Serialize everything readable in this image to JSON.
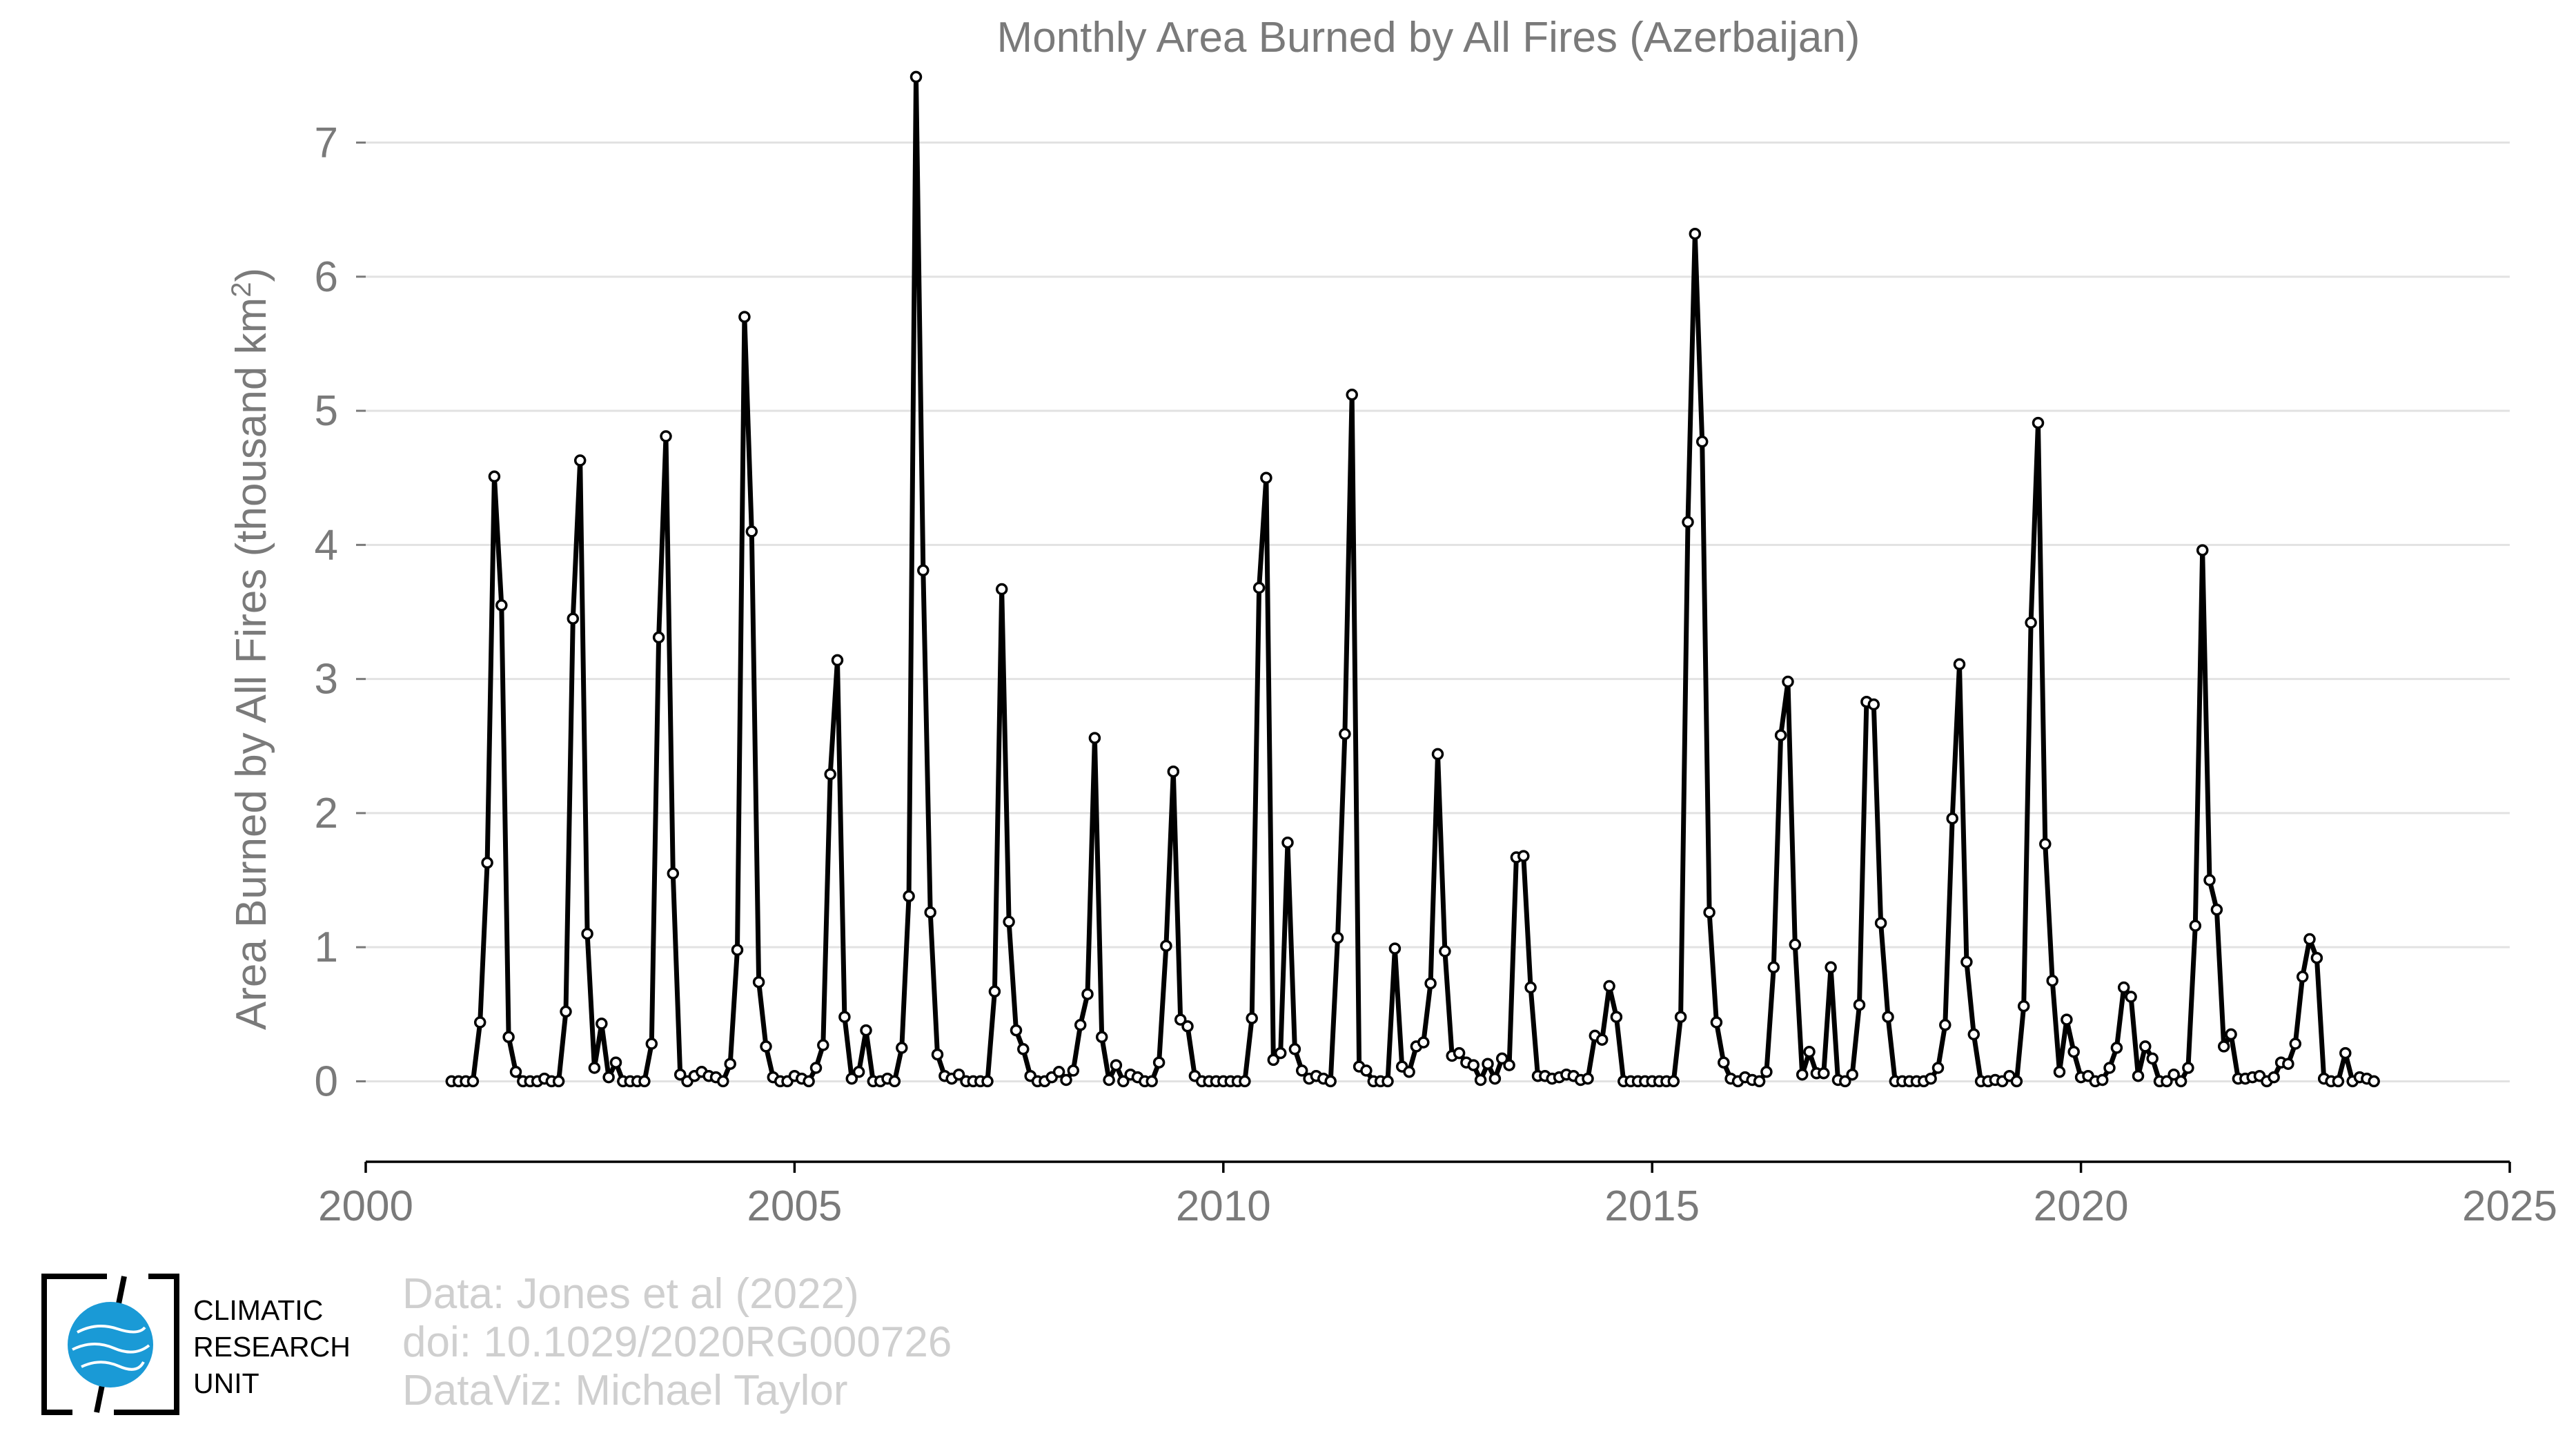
{
  "chart_data": {
    "type": "line",
    "title": "Monthly Area Burned by All Fires (Azerbaijan)",
    "ylabel_main": "Area Burned by All Fires (thousand km",
    "ylabel_sup": "2",
    "ylabel_end": ")",
    "xlabel": "",
    "xlim": [
      2000,
      2025
    ],
    "ylim": [
      -0.6,
      7.6
    ],
    "x_ticks": [
      2000,
      2005,
      2010,
      2015,
      2020,
      2025
    ],
    "x_tick_labels": [
      "2000",
      "2005",
      "2010",
      "2015",
      "2020",
      "2025"
    ],
    "y_ticks": [
      0,
      1,
      2,
      3,
      4,
      5,
      6,
      7
    ],
    "y_tick_labels": [
      "0",
      "1",
      "2",
      "3",
      "4",
      "5",
      "6",
      "7"
    ],
    "grid": "horizontal",
    "legend": "none",
    "line_color": "#000000",
    "start_year": 2001,
    "start_month": 1,
    "series": [
      {
        "values": [
          0.0,
          0.0,
          0.0,
          0.0,
          0.44,
          1.63,
          4.51,
          3.55,
          0.33,
          0.07,
          0.0,
          0.0,
          0.0,
          0.02,
          0.0,
          0.0,
          0.52,
          3.45,
          4.63,
          1.1,
          0.1,
          0.43,
          0.03,
          0.14,
          0.0,
          0.0,
          0.0,
          0.0,
          0.28,
          3.31,
          4.81,
          1.55,
          0.05,
          0.0,
          0.04,
          0.07,
          0.04,
          0.03,
          0.0,
          0.13,
          0.98,
          5.7,
          4.1,
          0.74,
          0.26,
          0.03,
          0.0,
          0.0,
          0.04,
          0.02,
          0.0,
          0.1,
          0.27,
          2.29,
          3.14,
          0.48,
          0.02,
          0.07,
          0.38,
          0.0,
          0.0,
          0.02,
          0.0,
          0.25,
          1.38,
          7.49,
          3.81,
          1.26,
          0.2,
          0.04,
          0.02,
          0.05,
          0.0,
          0.0,
          0.0,
          0.0,
          0.67,
          3.67,
          1.19,
          0.38,
          0.24,
          0.04,
          0.0,
          0.0,
          0.03,
          0.07,
          0.01,
          0.08,
          0.42,
          0.65,
          2.56,
          0.33,
          0.01,
          0.12,
          0.0,
          0.05,
          0.03,
          0.0,
          0.0,
          0.14,
          1.01,
          2.31,
          0.46,
          0.41,
          0.04,
          0.0,
          0.0,
          0.0,
          0.0,
          0.0,
          0.0,
          0.0,
          0.47,
          3.68,
          4.5,
          0.16,
          0.21,
          1.78,
          0.24,
          0.08,
          0.02,
          0.04,
          0.02,
          0.0,
          1.07,
          2.59,
          5.12,
          0.11,
          0.08,
          0.0,
          0.0,
          0.0,
          0.99,
          0.11,
          0.07,
          0.26,
          0.29,
          0.73,
          2.44,
          0.97,
          0.19,
          0.21,
          0.14,
          0.12,
          0.01,
          0.13,
          0.02,
          0.17,
          0.12,
          1.67,
          1.68,
          0.7,
          0.04,
          0.04,
          0.02,
          0.03,
          0.05,
          0.04,
          0.01,
          0.02,
          0.34,
          0.31,
          0.71,
          0.48,
          0.0,
          0.0,
          0.0,
          0.0,
          0.0,
          0.0,
          0.0,
          0.0,
          0.48,
          4.17,
          6.32,
          4.77,
          1.26,
          0.44,
          0.14,
          0.02,
          0.0,
          0.03,
          0.01,
          0.0,
          0.07,
          0.85,
          2.58,
          2.98,
          1.02,
          0.05,
          0.22,
          0.06,
          0.06,
          0.85,
          0.01,
          0.0,
          0.05,
          0.57,
          2.83,
          2.81,
          1.18,
          0.48,
          0.0,
          0.0,
          0.0,
          0.0,
          0.0,
          0.02,
          0.1,
          0.42,
          1.96,
          3.11,
          0.89,
          0.35,
          0.0,
          0.0,
          0.01,
          0.0,
          0.04,
          0.0,
          0.56,
          3.42,
          4.91,
          1.77,
          0.75,
          0.07,
          0.46,
          0.22,
          0.03,
          0.04,
          0.0,
          0.01,
          0.1,
          0.25,
          0.7,
          0.63,
          0.04,
          0.26,
          0.17,
          0.0,
          0.0,
          0.05,
          0.0,
          0.1,
          1.16,
          3.96,
          1.5,
          1.28,
          0.26,
          0.35,
          0.02,
          0.02,
          0.03,
          0.04,
          0.0,
          0.03,
          0.14,
          0.13,
          0.28,
          0.78,
          1.06,
          0.92,
          0.02,
          0.0,
          0.0,
          0.21,
          0.0,
          0.03,
          0.02,
          0.0
        ]
      }
    ]
  },
  "credits": {
    "line1": "Data: Jones et al (2022)",
    "line2": "doi: 10.1029/2020RG000726",
    "line3": "DataViz: Michael Taylor"
  },
  "logo": {
    "line1": "CLIMATIC",
    "line2": "RESEARCH",
    "line3": "UNIT",
    "globe_color": "#1a9ad6"
  }
}
